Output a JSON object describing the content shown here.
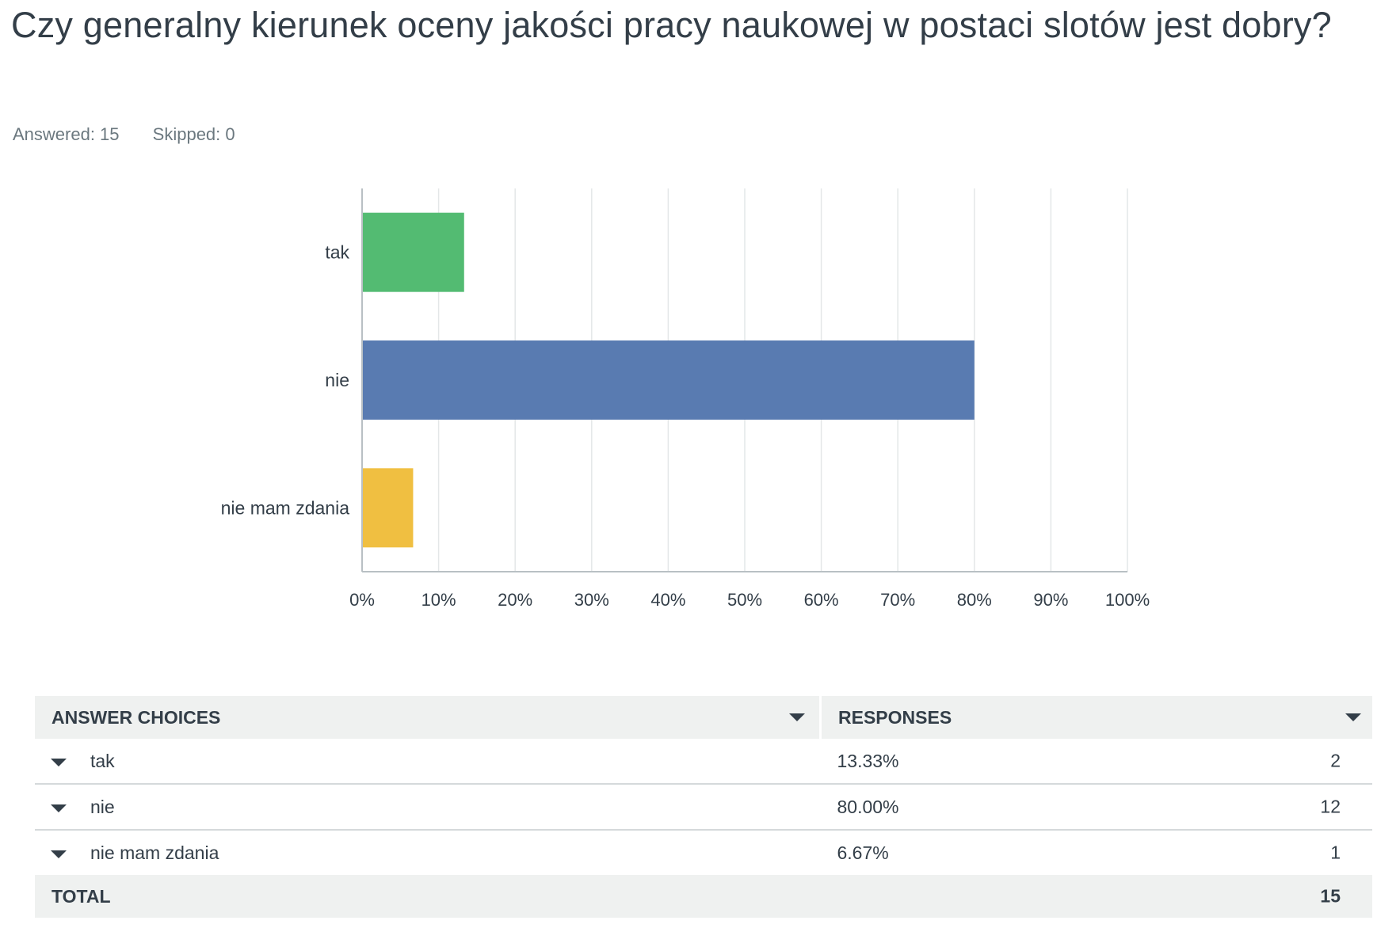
{
  "question": {
    "title": "Czy generalny kierunek oceny jakości pracy naukowej w postaci slotów jest dobry?",
    "answered_label": "Answered: 15",
    "skipped_label": "Skipped: 0"
  },
  "chart_data": {
    "type": "bar",
    "orientation": "horizontal",
    "categories": [
      "tak",
      "nie",
      "nie mam zdania"
    ],
    "values": [
      13.33,
      80.0,
      6.67
    ],
    "colors": [
      "#53bb72",
      "#597bb1",
      "#f0bf41"
    ],
    "xlim": [
      0,
      100
    ],
    "xticks": [
      "0%",
      "10%",
      "20%",
      "30%",
      "40%",
      "50%",
      "60%",
      "70%",
      "80%",
      "90%",
      "100%"
    ],
    "grid": true,
    "title": "",
    "xlabel": "",
    "ylabel": ""
  },
  "table": {
    "header": {
      "choices": "ANSWER CHOICES",
      "responses": "RESPONSES"
    },
    "rows": [
      {
        "choice": "tak",
        "percent": "13.33%",
        "count": "2"
      },
      {
        "choice": "nie",
        "percent": "80.00%",
        "count": "12"
      },
      {
        "choice": "nie mam zdania",
        "percent": "6.67%",
        "count": "1"
      }
    ],
    "total": {
      "label": "TOTAL",
      "count": "15"
    }
  }
}
